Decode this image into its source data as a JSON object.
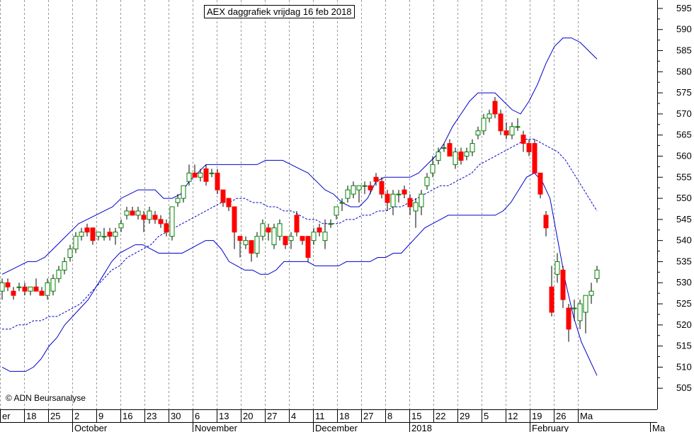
{
  "title": "AEX daggrafiek vrijdag 16 feb 2018",
  "copyright": "© ADN Beursanalyse",
  "colors": {
    "up": "#008000",
    "down": "#ff0000",
    "band": "#0000cc",
    "grid": "#999999"
  },
  "chart_data": {
    "type": "candlestick",
    "title": "AEX daggrafiek vrijdag 16 feb 2018",
    "ylim": [
      500,
      597
    ],
    "yticks": [
      505,
      510,
      515,
      520,
      525,
      530,
      535,
      540,
      545,
      550,
      555,
      560,
      565,
      570,
      575,
      580,
      585,
      590,
      595
    ],
    "xlabels": [
      "er",
      "18",
      "25",
      "2",
      "9",
      "16",
      "23",
      "30",
      "6",
      "13",
      "20",
      "27",
      "4",
      "11",
      "18",
      "27",
      "8",
      "15",
      "22",
      "29",
      "5",
      "12",
      "19",
      "26",
      "Ma"
    ],
    "months": [
      "October",
      "November",
      "December",
      "2018",
      "February",
      "Ma"
    ],
    "grid": true,
    "candles": [
      {
        "o": 528,
        "h": 531,
        "l": 526,
        "c": 530
      },
      {
        "o": 530,
        "h": 531,
        "l": 528,
        "c": 529
      },
      {
        "o": 528,
        "h": 529,
        "l": 526,
        "c": 527
      },
      {
        "o": 529,
        "h": 530,
        "l": 528,
        "c": 529
      },
      {
        "o": 529,
        "h": 530,
        "l": 527,
        "c": 528
      },
      {
        "o": 528,
        "h": 529,
        "l": 527,
        "c": 529
      },
      {
        "o": 529,
        "h": 531,
        "l": 528,
        "c": 528
      },
      {
        "o": 528,
        "h": 529,
        "l": 527,
        "c": 527
      },
      {
        "o": 527,
        "h": 531,
        "l": 526,
        "c": 530
      },
      {
        "o": 528,
        "h": 532,
        "l": 527,
        "c": 531
      },
      {
        "o": 531,
        "h": 534,
        "l": 530,
        "c": 533
      },
      {
        "o": 533,
        "h": 536,
        "l": 532,
        "c": 535
      },
      {
        "o": 536,
        "h": 539,
        "l": 535,
        "c": 538
      },
      {
        "o": 538,
        "h": 542,
        "l": 537,
        "c": 541
      },
      {
        "o": 541,
        "h": 543,
        "l": 540,
        "c": 542
      },
      {
        "o": 543,
        "h": 544,
        "l": 541,
        "c": 542
      },
      {
        "o": 543,
        "h": 543,
        "l": 539,
        "c": 540
      },
      {
        "o": 541,
        "h": 542,
        "l": 540,
        "c": 542
      },
      {
        "o": 541,
        "h": 543,
        "l": 540,
        "c": 541
      },
      {
        "o": 542,
        "h": 543,
        "l": 540,
        "c": 541
      },
      {
        "o": 541,
        "h": 543,
        "l": 539,
        "c": 542
      },
      {
        "o": 543,
        "h": 545,
        "l": 542,
        "c": 544
      },
      {
        "o": 546,
        "h": 548,
        "l": 545,
        "c": 547
      },
      {
        "o": 547,
        "h": 548,
        "l": 546,
        "c": 546
      },
      {
        "o": 546,
        "h": 548,
        "l": 545,
        "c": 547
      },
      {
        "o": 546,
        "h": 547,
        "l": 542,
        "c": 545
      },
      {
        "o": 545,
        "h": 548,
        "l": 544,
        "c": 547
      },
      {
        "o": 546,
        "h": 547,
        "l": 544,
        "c": 545
      },
      {
        "o": 545,
        "h": 546,
        "l": 543,
        "c": 544
      },
      {
        "o": 544,
        "h": 545,
        "l": 541,
        "c": 542
      },
      {
        "o": 541,
        "h": 548,
        "l": 540,
        "c": 548
      },
      {
        "o": 549,
        "h": 551,
        "l": 548,
        "c": 550
      },
      {
        "o": 550,
        "h": 553,
        "l": 549,
        "c": 553
      },
      {
        "o": 554,
        "h": 558,
        "l": 553,
        "c": 556
      },
      {
        "o": 556,
        "h": 558,
        "l": 555,
        "c": 555
      },
      {
        "o": 555,
        "h": 557,
        "l": 554,
        "c": 556
      },
      {
        "o": 557,
        "h": 558,
        "l": 553,
        "c": 554
      },
      {
        "o": 556,
        "h": 557,
        "l": 555,
        "c": 556
      },
      {
        "o": 556,
        "h": 557,
        "l": 551,
        "c": 552
      },
      {
        "o": 552,
        "h": 552,
        "l": 548,
        "c": 549
      },
      {
        "o": 550,
        "h": 550,
        "l": 547,
        "c": 548
      },
      {
        "o": 548,
        "h": 548,
        "l": 538,
        "c": 542
      },
      {
        "o": 541,
        "h": 541,
        "l": 536,
        "c": 540
      },
      {
        "o": 539,
        "h": 541,
        "l": 538,
        "c": 540
      },
      {
        "o": 540,
        "h": 540,
        "l": 535,
        "c": 537
      },
      {
        "o": 537,
        "h": 542,
        "l": 536,
        "c": 541
      },
      {
        "o": 541,
        "h": 545,
        "l": 540,
        "c": 544
      },
      {
        "o": 543,
        "h": 544,
        "l": 540,
        "c": 542
      },
      {
        "o": 539,
        "h": 544,
        "l": 538,
        "c": 543
      },
      {
        "o": 541,
        "h": 545,
        "l": 540,
        "c": 544
      },
      {
        "o": 541,
        "h": 541,
        "l": 538,
        "c": 539
      },
      {
        "o": 540,
        "h": 542,
        "l": 538,
        "c": 541
      },
      {
        "o": 546,
        "h": 547,
        "l": 541,
        "c": 542
      },
      {
        "o": 541,
        "h": 541,
        "l": 539,
        "c": 540
      },
      {
        "o": 541,
        "h": 541,
        "l": 535,
        "c": 536
      },
      {
        "o": 540,
        "h": 543,
        "l": 539,
        "c": 542
      },
      {
        "o": 543,
        "h": 544,
        "l": 541,
        "c": 542
      },
      {
        "o": 540,
        "h": 545,
        "l": 538,
        "c": 542
      },
      {
        "o": 544,
        "h": 545,
        "l": 543,
        "c": 544
      },
      {
        "o": 546,
        "h": 548,
        "l": 545,
        "c": 548
      },
      {
        "o": 549,
        "h": 550,
        "l": 547,
        "c": 549
      },
      {
        "o": 550,
        "h": 553,
        "l": 549,
        "c": 552
      },
      {
        "o": 551,
        "h": 554,
        "l": 550,
        "c": 553
      },
      {
        "o": 552,
        "h": 553,
        "l": 549,
        "c": 553
      },
      {
        "o": 553,
        "h": 554,
        "l": 551,
        "c": 553
      },
      {
        "o": 553,
        "h": 554,
        "l": 551,
        "c": 552
      },
      {
        "o": 555,
        "h": 556,
        "l": 553,
        "c": 554
      },
      {
        "o": 554,
        "h": 555,
        "l": 550,
        "c": 551
      },
      {
        "o": 551,
        "h": 552,
        "l": 547,
        "c": 549
      },
      {
        "o": 548,
        "h": 552,
        "l": 546,
        "c": 551
      },
      {
        "o": 551,
        "h": 552,
        "l": 549,
        "c": 551
      },
      {
        "o": 552,
        "h": 553,
        "l": 550,
        "c": 551
      },
      {
        "o": 550,
        "h": 551,
        "l": 546,
        "c": 548
      },
      {
        "o": 547,
        "h": 550,
        "l": 543,
        "c": 549
      },
      {
        "o": 548,
        "h": 552,
        "l": 546,
        "c": 551
      },
      {
        "o": 553,
        "h": 556,
        "l": 552,
        "c": 555
      },
      {
        "o": 556,
        "h": 560,
        "l": 555,
        "c": 558
      },
      {
        "o": 559,
        "h": 562,
        "l": 558,
        "c": 561
      },
      {
        "o": 562,
        "h": 563,
        "l": 561,
        "c": 562
      },
      {
        "o": 563,
        "h": 564,
        "l": 560,
        "c": 560
      },
      {
        "o": 558,
        "h": 562,
        "l": 557,
        "c": 561
      },
      {
        "o": 561,
        "h": 562,
        "l": 558,
        "c": 559
      },
      {
        "o": 560,
        "h": 562,
        "l": 559,
        "c": 561
      },
      {
        "o": 561,
        "h": 564,
        "l": 560,
        "c": 563
      },
      {
        "o": 565,
        "h": 567,
        "l": 564,
        "c": 566
      },
      {
        "o": 566,
        "h": 570,
        "l": 565,
        "c": 569
      },
      {
        "o": 569,
        "h": 571,
        "l": 568,
        "c": 570
      },
      {
        "o": 573,
        "h": 574,
        "l": 569,
        "c": 570
      },
      {
        "o": 570,
        "h": 571,
        "l": 565,
        "c": 566
      },
      {
        "o": 566,
        "h": 568,
        "l": 564,
        "c": 565
      },
      {
        "o": 565,
        "h": 568,
        "l": 564,
        "c": 567
      },
      {
        "o": 567,
        "h": 569,
        "l": 566,
        "c": 567
      },
      {
        "o": 565,
        "h": 566,
        "l": 561,
        "c": 563
      },
      {
        "o": 563,
        "h": 564,
        "l": 560,
        "c": 561
      },
      {
        "o": 563,
        "h": 564,
        "l": 556,
        "c": 556
      },
      {
        "o": 556,
        "h": 556,
        "l": 550,
        "c": 551
      },
      {
        "o": 546,
        "h": 547,
        "l": 541,
        "c": 543
      },
      {
        "o": 529,
        "h": 534,
        "l": 522,
        "c": 523
      },
      {
        "o": 532,
        "h": 537,
        "l": 530,
        "c": 535
      },
      {
        "o": 533,
        "h": 534,
        "l": 524,
        "c": 526
      },
      {
        "o": 524,
        "h": 525,
        "l": 516,
        "c": 519
      },
      {
        "o": 524,
        "h": 526,
        "l": 521,
        "c": 524
      },
      {
        "o": 521,
        "h": 526,
        "l": 519,
        "c": 525
      },
      {
        "o": 523,
        "h": 527,
        "l": 518,
        "c": 527
      },
      {
        "o": 527,
        "h": 530,
        "l": 525,
        "c": 528
      },
      {
        "o": 531,
        "h": 534,
        "l": 530,
        "c": 533
      }
    ],
    "upper_band": [
      532,
      533,
      534,
      535,
      535,
      536,
      538,
      540,
      542,
      544,
      545,
      546,
      547,
      548,
      550,
      551,
      552,
      552,
      552,
      550,
      550,
      551,
      554,
      556,
      558,
      558,
      558,
      558,
      558,
      558,
      558,
      559,
      559,
      559,
      558,
      557,
      556,
      554,
      552,
      551,
      549,
      548,
      548,
      550,
      554,
      555,
      555,
      555,
      555,
      556,
      558,
      560,
      563,
      567,
      570,
      573,
      575,
      575,
      575,
      573,
      571,
      570,
      573,
      577,
      582,
      586,
      588,
      588,
      587,
      585,
      583
    ],
    "middle_band": [
      519,
      519,
      520,
      520,
      521,
      521,
      522,
      522,
      523,
      524,
      525,
      527,
      529,
      531,
      533,
      534,
      536,
      537,
      538,
      539,
      541,
      542,
      543,
      544,
      545,
      546,
      547,
      548,
      549,
      549,
      550,
      550,
      549,
      549,
      548,
      548,
      547,
      547,
      546,
      545,
      545,
      544,
      544,
      544,
      545,
      545,
      546,
      546,
      547,
      547,
      548,
      548,
      549,
      550,
      551,
      552,
      553,
      553,
      554,
      555,
      556,
      558,
      559,
      560,
      561,
      562,
      563,
      564,
      564,
      563,
      562,
      561,
      559,
      556,
      553,
      550,
      547
    ],
    "lower_band": [
      510,
      509,
      509,
      509,
      510,
      512,
      515,
      517,
      520,
      522,
      524,
      526,
      529,
      532,
      535,
      537,
      538,
      539,
      539,
      538,
      537,
      537,
      537,
      537,
      538,
      539,
      540,
      540,
      538,
      535,
      534,
      533,
      533,
      532,
      532,
      533,
      535,
      535,
      535,
      535,
      534,
      534,
      534,
      534,
      535,
      535,
      535,
      535,
      536,
      536,
      537,
      537,
      539,
      541,
      543,
      544,
      545,
      546,
      546,
      546,
      546,
      546,
      546,
      546,
      547,
      549,
      552,
      555,
      556,
      554,
      550,
      540,
      530,
      522,
      516,
      512,
      508
    ]
  }
}
